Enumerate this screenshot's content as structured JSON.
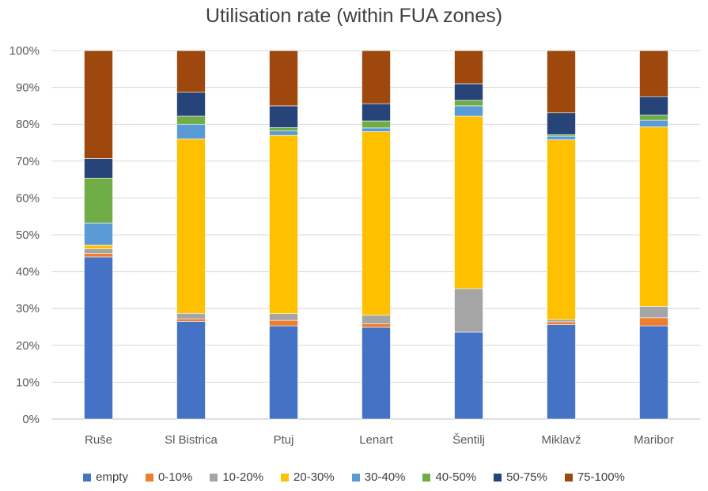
{
  "chart_data": {
    "type": "bar",
    "stacked": true,
    "percent_stacked": true,
    "title": "Utilisation rate (within FUA zones)",
    "xlabel": "",
    "ylabel": "",
    "ylim": [
      0,
      100
    ],
    "y_tick_labels": [
      "0%",
      "10%",
      "20%",
      "30%",
      "40%",
      "50%",
      "60%",
      "70%",
      "80%",
      "90%",
      "100%"
    ],
    "grid": true,
    "legend_position": "bottom",
    "categories": [
      "Ruše",
      "Sl Bistrica",
      "Ptuj",
      "Lenart",
      "Šentilj",
      "Miklavž",
      "Maribor"
    ],
    "series": [
      {
        "name": "empty",
        "color": "#4472C4",
        "values": [
          44.0,
          26.5,
          25.3,
          24.9,
          23.6,
          25.6,
          25.3
        ]
      },
      {
        "name": "0-10%",
        "color": "#ED7D31",
        "values": [
          1.0,
          0.7,
          1.5,
          1.0,
          0.0,
          0.8,
          2.2
        ]
      },
      {
        "name": "10-20%",
        "color": "#A5A5A5",
        "values": [
          1.2,
          1.5,
          1.8,
          2.3,
          11.8,
          0.6,
          3.1
        ]
      },
      {
        "name": "20-30%",
        "color": "#FFC000",
        "values": [
          1.0,
          47.3,
          48.4,
          49.8,
          46.8,
          48.8,
          48.7
        ]
      },
      {
        "name": "30-40%",
        "color": "#5B9BD5",
        "values": [
          6.0,
          4.0,
          1.2,
          1.0,
          2.8,
          1.0,
          1.8
        ]
      },
      {
        "name": "40-50%",
        "color": "#70AD47",
        "values": [
          12.2,
          2.2,
          0.9,
          1.9,
          1.5,
          0.4,
          1.4
        ]
      },
      {
        "name": "50-75%",
        "color": "#264478",
        "values": [
          5.3,
          6.5,
          5.9,
          4.7,
          4.5,
          5.9,
          5.0
        ]
      },
      {
        "name": "75-100%",
        "color": "#9E480E",
        "values": [
          29.3,
          11.3,
          15.0,
          14.4,
          9.0,
          16.9,
          12.5
        ]
      }
    ]
  }
}
